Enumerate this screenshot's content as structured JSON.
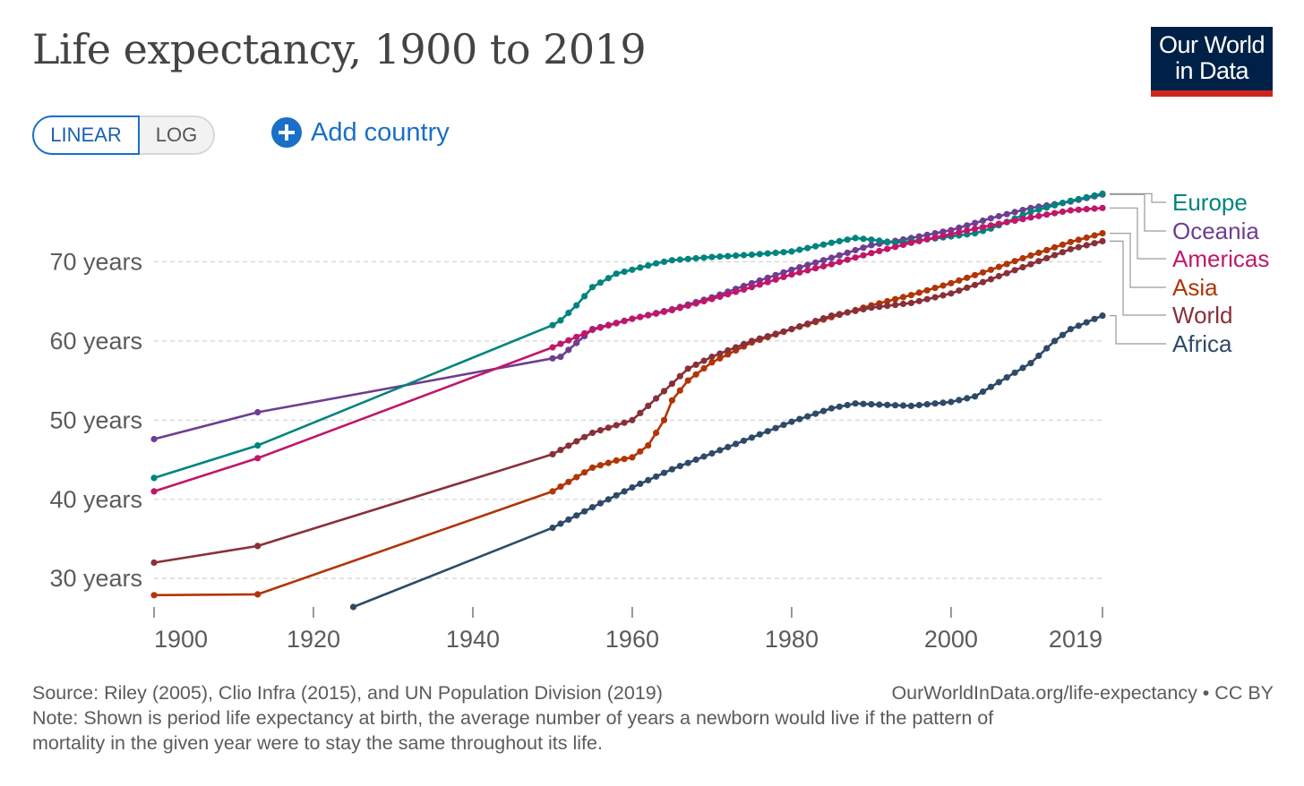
{
  "header": {
    "title": "Life expectancy, 1900 to 2019",
    "logo_line1": "Our World",
    "logo_line2": "in Data"
  },
  "controls": {
    "linear_label": "LINEAR",
    "log_label": "LOG",
    "add_country_label": "Add country",
    "selected_scale": "linear"
  },
  "footer": {
    "source": "Source: Riley (2005), Clio Infra (2015), and UN Population Division (2019)",
    "credit": "OurWorldInData.org/life-expectancy • CC BY",
    "note_line1": "Note: Shown is period life expectancy at birth, the average number of years a newborn would live if the pattern of",
    "note_line2": "mortality in the given year were to stay the same throughout its life."
  },
  "chart_data": {
    "type": "line",
    "title": "Life expectancy, 1900 to 2019",
    "xlim": [
      1900,
      2019
    ],
    "ylim": [
      25.5,
      80
    ],
    "x_ticks": [
      {
        "value": 1900,
        "label": "1900"
      },
      {
        "value": 1920,
        "label": "1920"
      },
      {
        "value": 1940,
        "label": "1940"
      },
      {
        "value": 1960,
        "label": "1960"
      },
      {
        "value": 1980,
        "label": "1980"
      },
      {
        "value": 2000,
        "label": "2000"
      },
      {
        "value": 2019,
        "label": "2019"
      }
    ],
    "y_ticks": [
      {
        "value": 30,
        "label": "30 years"
      },
      {
        "value": 40,
        "label": "40 years"
      },
      {
        "value": 50,
        "label": "50 years"
      },
      {
        "value": 60,
        "label": "60 years"
      },
      {
        "value": 70,
        "label": "70 years"
      }
    ],
    "grid": "horizontal dashed",
    "legend": "right, end labels",
    "series": [
      {
        "name": "Oceania",
        "color": "#6d3e91",
        "points": [
          [
            1900,
            47.6
          ],
          [
            1913,
            51.0
          ],
          [
            1950,
            57.8
          ],
          [
            1951,
            58.0
          ],
          [
            1955,
            61.5
          ],
          [
            1960,
            62.8
          ],
          [
            1965,
            64.0
          ],
          [
            1970,
            65.5
          ],
          [
            1975,
            67.3
          ],
          [
            1980,
            69.0
          ],
          [
            1985,
            70.5
          ],
          [
            1990,
            72.1
          ],
          [
            1995,
            73.0
          ],
          [
            2000,
            74.0
          ],
          [
            2005,
            75.5
          ],
          [
            2010,
            76.8
          ],
          [
            2015,
            77.6
          ],
          [
            2019,
            78.5
          ]
        ]
      },
      {
        "name": "Europe",
        "color": "#00847e",
        "points": [
          [
            1900,
            42.7
          ],
          [
            1913,
            46.8
          ],
          [
            1950,
            62.0
          ],
          [
            1951,
            62.6
          ],
          [
            1953,
            64.5
          ],
          [
            1955,
            66.8
          ],
          [
            1958,
            68.5
          ],
          [
            1960,
            69.0
          ],
          [
            1963,
            69.8
          ],
          [
            1965,
            70.2
          ],
          [
            1970,
            70.6
          ],
          [
            1975,
            70.9
          ],
          [
            1980,
            71.3
          ],
          [
            1985,
            72.4
          ],
          [
            1988,
            73.0
          ],
          [
            1990,
            72.8
          ],
          [
            1993,
            72.4
          ],
          [
            1995,
            72.6
          ],
          [
            2000,
            73.2
          ],
          [
            2003,
            73.6
          ],
          [
            2005,
            74.2
          ],
          [
            2010,
            76.3
          ],
          [
            2015,
            77.7
          ],
          [
            2019,
            78.6
          ]
        ]
      },
      {
        "name": "Americas",
        "color": "#c0176b",
        "points": [
          [
            1900,
            41.0
          ],
          [
            1913,
            45.2
          ],
          [
            1950,
            59.2
          ],
          [
            1955,
            61.4
          ],
          [
            1960,
            62.8
          ],
          [
            1965,
            63.9
          ],
          [
            1970,
            65.3
          ],
          [
            1975,
            66.8
          ],
          [
            1980,
            68.4
          ],
          [
            1985,
            69.7
          ],
          [
            1990,
            71.1
          ],
          [
            1995,
            72.4
          ],
          [
            2000,
            73.5
          ],
          [
            2005,
            74.6
          ],
          [
            2010,
            75.6
          ],
          [
            2015,
            76.5
          ],
          [
            2019,
            76.8
          ]
        ]
      },
      {
        "name": "Asia",
        "color": "#b13507",
        "points": [
          [
            1900,
            27.9
          ],
          [
            1913,
            28.0
          ],
          [
            1950,
            41.0
          ],
          [
            1955,
            44.0
          ],
          [
            1958,
            44.9
          ],
          [
            1960,
            45.3
          ],
          [
            1962,
            46.8
          ],
          [
            1964,
            50.0
          ],
          [
            1965,
            52.5
          ],
          [
            1967,
            55.0
          ],
          [
            1970,
            57.3
          ],
          [
            1975,
            59.8
          ],
          [
            1980,
            61.5
          ],
          [
            1985,
            63.0
          ],
          [
            1990,
            64.5
          ],
          [
            1995,
            65.8
          ],
          [
            2000,
            67.3
          ],
          [
            2005,
            69.0
          ],
          [
            2010,
            70.8
          ],
          [
            2015,
            72.5
          ],
          [
            2019,
            73.6
          ]
        ]
      },
      {
        "name": "World",
        "color": "#883039",
        "points": [
          [
            1900,
            32.0
          ],
          [
            1913,
            34.1
          ],
          [
            1950,
            45.7
          ],
          [
            1955,
            48.4
          ],
          [
            1960,
            50.0
          ],
          [
            1962,
            51.8
          ],
          [
            1965,
            54.6
          ],
          [
            1967,
            56.5
          ],
          [
            1970,
            58.0
          ],
          [
            1975,
            60.0
          ],
          [
            1980,
            61.5
          ],
          [
            1985,
            63.2
          ],
          [
            1990,
            64.2
          ],
          [
            1995,
            64.8
          ],
          [
            2000,
            66.0
          ],
          [
            2005,
            67.8
          ],
          [
            2010,
            69.7
          ],
          [
            2015,
            71.6
          ],
          [
            2019,
            72.6
          ]
        ]
      },
      {
        "name": "Africa",
        "color": "#2e4a68",
        "points": [
          [
            1925,
            26.4
          ],
          [
            1950,
            36.4
          ],
          [
            1955,
            39.0
          ],
          [
            1960,
            41.5
          ],
          [
            1965,
            43.8
          ],
          [
            1970,
            45.8
          ],
          [
            1975,
            47.8
          ],
          [
            1980,
            49.8
          ],
          [
            1985,
            51.5
          ],
          [
            1988,
            52.1
          ],
          [
            1990,
            52.0
          ],
          [
            1995,
            51.8
          ],
          [
            2000,
            52.3
          ],
          [
            2003,
            53.0
          ],
          [
            2005,
            54.2
          ],
          [
            2010,
            57.2
          ],
          [
            2013,
            60.0
          ],
          [
            2015,
            61.5
          ],
          [
            2019,
            63.2
          ]
        ]
      }
    ]
  }
}
